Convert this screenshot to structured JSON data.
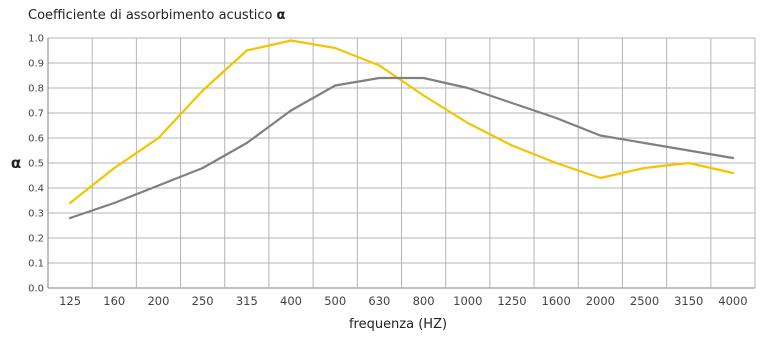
{
  "chart_data": {
    "type": "line",
    "title": "Coefficiente di assorbimento acustico",
    "title_symbol": "α",
    "xlabel": "frequenza (HZ)",
    "ylabel": "α",
    "categories": [
      "125",
      "160",
      "200",
      "250",
      "315",
      "400",
      "500",
      "630",
      "800",
      "1000",
      "1250",
      "1600",
      "2000",
      "2500",
      "3150",
      "4000"
    ],
    "ylim": [
      0,
      1.0
    ],
    "yticks": [
      "0.0",
      "0.1",
      "0.2",
      "0.3",
      "0.4",
      "0.5",
      "0.6",
      "0.7",
      "0.8",
      "0.9",
      "1.0"
    ],
    "grid": true,
    "legend": "none",
    "series": [
      {
        "color": "#f5c400",
        "values": [
          0.34,
          0.48,
          0.6,
          0.79,
          0.95,
          0.99,
          0.96,
          0.89,
          0.77,
          0.66,
          0.57,
          0.5,
          0.44,
          0.48,
          0.5,
          0.46
        ]
      },
      {
        "color": "#808080",
        "values": [
          0.28,
          0.34,
          0.41,
          0.48,
          0.58,
          0.71,
          0.81,
          0.84,
          0.84,
          0.8,
          0.74,
          0.68,
          0.61,
          0.58,
          0.55,
          0.52
        ]
      }
    ],
    "colors": {
      "grid": "#b4b4b4",
      "axis": "#808080",
      "text": "#444444"
    }
  }
}
